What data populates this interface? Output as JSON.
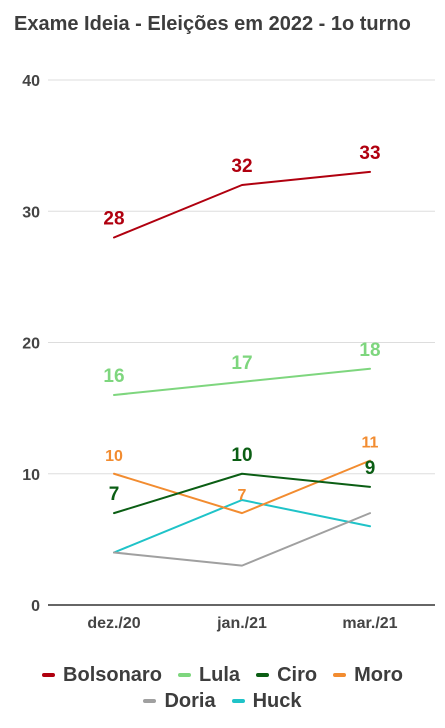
{
  "chart_data": {
    "type": "line",
    "title": "Exame Ideia - Eleições em 2022 - 1o turno",
    "xlabel": "",
    "ylabel": "",
    "categories": [
      "dez./20",
      "jan./21",
      "mar./21"
    ],
    "ylim": [
      0,
      40
    ],
    "yticks": [
      0,
      10,
      20,
      30,
      40
    ],
    "grid": true,
    "legend_position": "bottom",
    "series": [
      {
        "name": "Bolsonaro",
        "color": "#b0000f",
        "values": [
          28,
          32,
          33
        ],
        "labels": [
          "28",
          "32",
          "33"
        ]
      },
      {
        "name": "Lula",
        "color": "#7ed67e",
        "values": [
          16,
          17,
          18
        ],
        "labels": [
          "16",
          "17",
          "18"
        ]
      },
      {
        "name": "Ciro",
        "color": "#0b5e14",
        "values": [
          7,
          10,
          9
        ],
        "labels": [
          "7",
          "10",
          "9"
        ]
      },
      {
        "name": "Moro",
        "color": "#f28c30",
        "values": [
          10,
          7,
          11
        ],
        "labels": [
          "10",
          "7",
          "11"
        ]
      },
      {
        "name": "Doria",
        "color": "#a0a0a0",
        "values": [
          4,
          3,
          7
        ],
        "labels": []
      },
      {
        "name": "Huck",
        "color": "#1fc3c8",
        "values": [
          4,
          8,
          6
        ],
        "labels": []
      }
    ]
  }
}
